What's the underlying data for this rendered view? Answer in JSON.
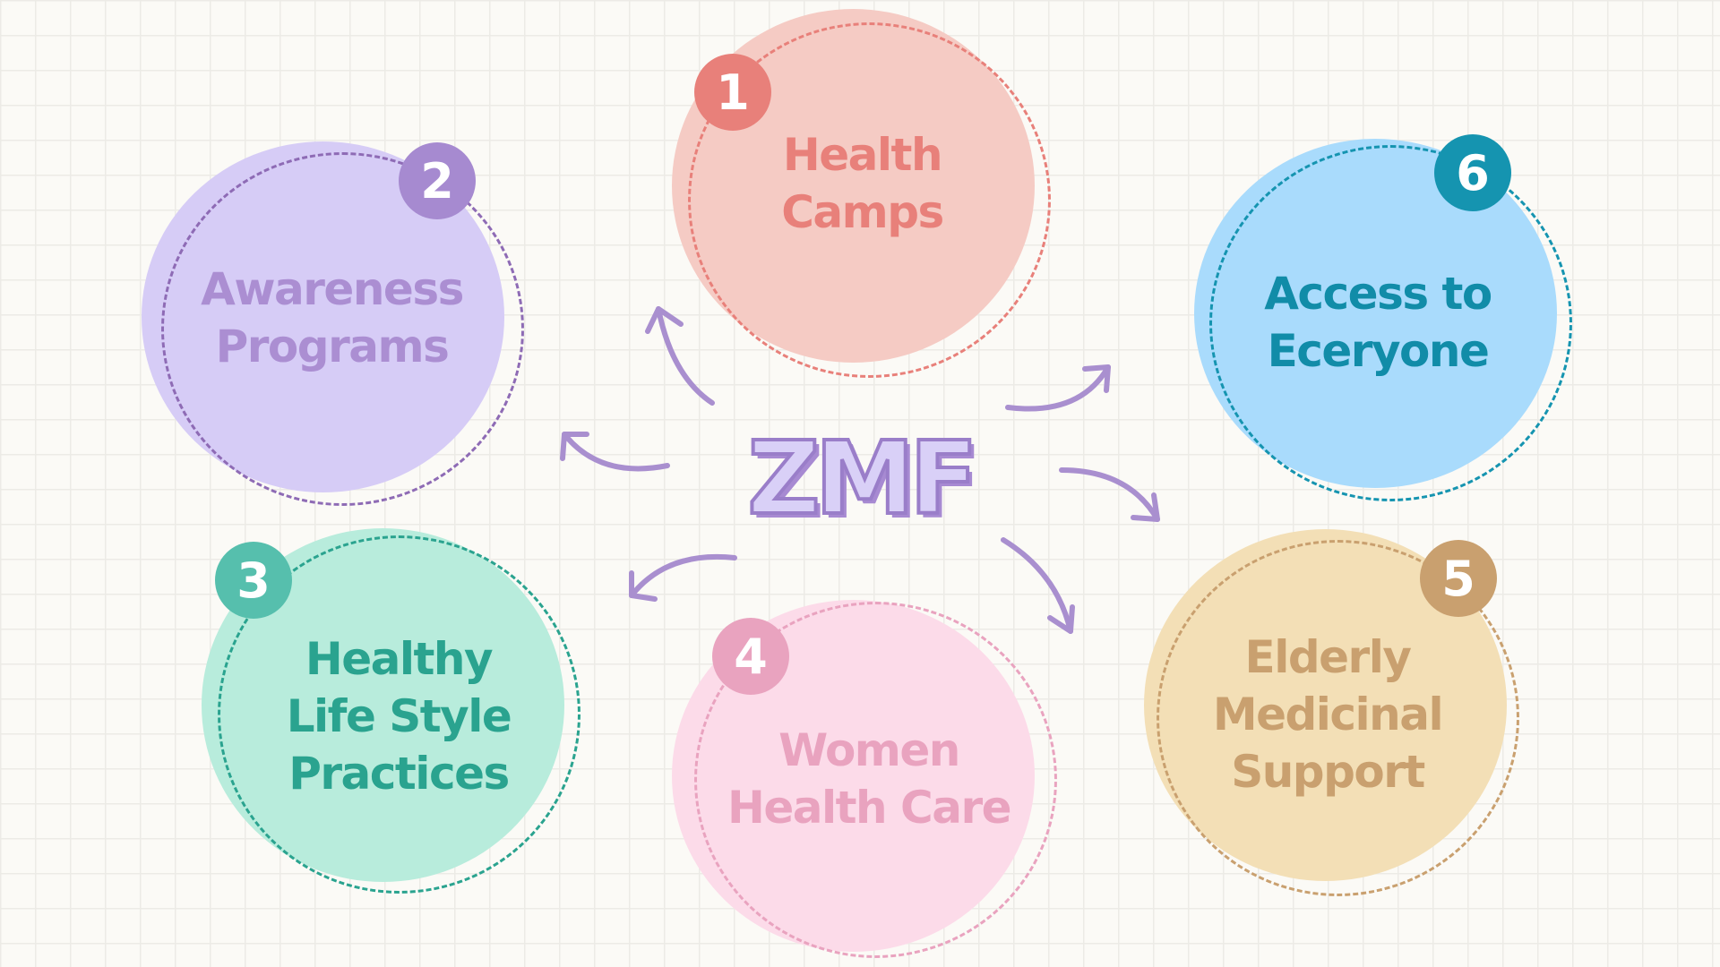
{
  "center": {
    "title": "ZMF"
  },
  "nodes": [
    {
      "badge": "1",
      "label": "Health\nCamps",
      "fill": "#f5cbc4",
      "accent": "#e8807a"
    },
    {
      "badge": "2",
      "label": "Awareness\nPrograms",
      "fill": "#d6ccf6",
      "accent": "#a68ad0",
      "label_color": "#ab8ed2",
      "ring_color": "#8e6bb5"
    },
    {
      "badge": "3",
      "label": "Healthy\nLife Style\nPractices",
      "fill": "#b8ecdc",
      "accent": "#56bfad",
      "label_color": "#2aa38f",
      "ring_color": "#2aa38f"
    },
    {
      "badge": "4",
      "label": "Women\nHealth Care",
      "fill": "#fcdbe9",
      "accent": "#e9a3bf"
    },
    {
      "badge": "5",
      "label": "Elderly\nMedicinal\nSupport",
      "fill": "#f3dfb6",
      "accent": "#c9a06f"
    },
    {
      "badge": "6",
      "label": "Access to\nEceryone",
      "fill": "#a9dbfc",
      "accent": "#1594b0",
      "label_color": "#118ca8",
      "ring_color": "#1594b0"
    }
  ],
  "arrow_color": "#a98fcf"
}
